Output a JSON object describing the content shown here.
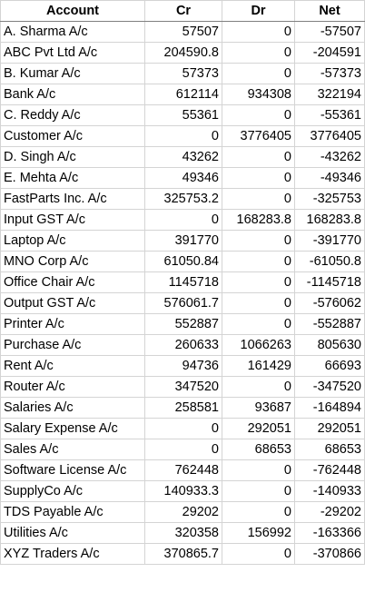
{
  "table": {
    "headers": [
      "Account",
      "Cr",
      "Dr",
      "Net"
    ],
    "rows": [
      [
        "A. Sharma A/c",
        "57507",
        "0",
        "-57507"
      ],
      [
        "ABC Pvt Ltd A/c",
        "204590.8",
        "0",
        "-204591"
      ],
      [
        "B. Kumar A/c",
        "57373",
        "0",
        "-57373"
      ],
      [
        "Bank A/c",
        "612114",
        "934308",
        "322194"
      ],
      [
        "C. Reddy A/c",
        "55361",
        "0",
        "-55361"
      ],
      [
        "Customer A/c",
        "0",
        "3776405",
        "3776405"
      ],
      [
        "D. Singh A/c",
        "43262",
        "0",
        "-43262"
      ],
      [
        "E. Mehta A/c",
        "49346",
        "0",
        "-49346"
      ],
      [
        "FastParts Inc. A/c",
        "325753.2",
        "0",
        "-325753"
      ],
      [
        "Input GST A/c",
        "0",
        "168283.8",
        "168283.8"
      ],
      [
        "Laptop A/c",
        "391770",
        "0",
        "-391770"
      ],
      [
        "MNO Corp A/c",
        "61050.84",
        "0",
        "-61050.8"
      ],
      [
        "Office Chair A/c",
        "1145718",
        "0",
        "-1145718"
      ],
      [
        "Output GST A/c",
        "576061.7",
        "0",
        "-576062"
      ],
      [
        "Printer A/c",
        "552887",
        "0",
        "-552887"
      ],
      [
        "Purchase A/c",
        "260633",
        "1066263",
        "805630"
      ],
      [
        "Rent A/c",
        "94736",
        "161429",
        "66693"
      ],
      [
        "Router A/c",
        "347520",
        "0",
        "-347520"
      ],
      [
        "Salaries A/c",
        "258581",
        "93687",
        "-164894"
      ],
      [
        "Salary Expense A/c",
        "0",
        "292051",
        "292051"
      ],
      [
        "Sales A/c",
        "0",
        "68653",
        "68653"
      ],
      [
        "Software License A/c",
        "762448",
        "0",
        "-762448"
      ],
      [
        "SupplyCo A/c",
        "140933.3",
        "0",
        "-140933"
      ],
      [
        "TDS Payable A/c",
        "29202",
        "0",
        "-29202"
      ],
      [
        "Utilities A/c",
        "320358",
        "156992",
        "-163366"
      ],
      [
        "XYZ Traders A/c",
        "370865.7",
        "0",
        "-370866"
      ]
    ]
  }
}
